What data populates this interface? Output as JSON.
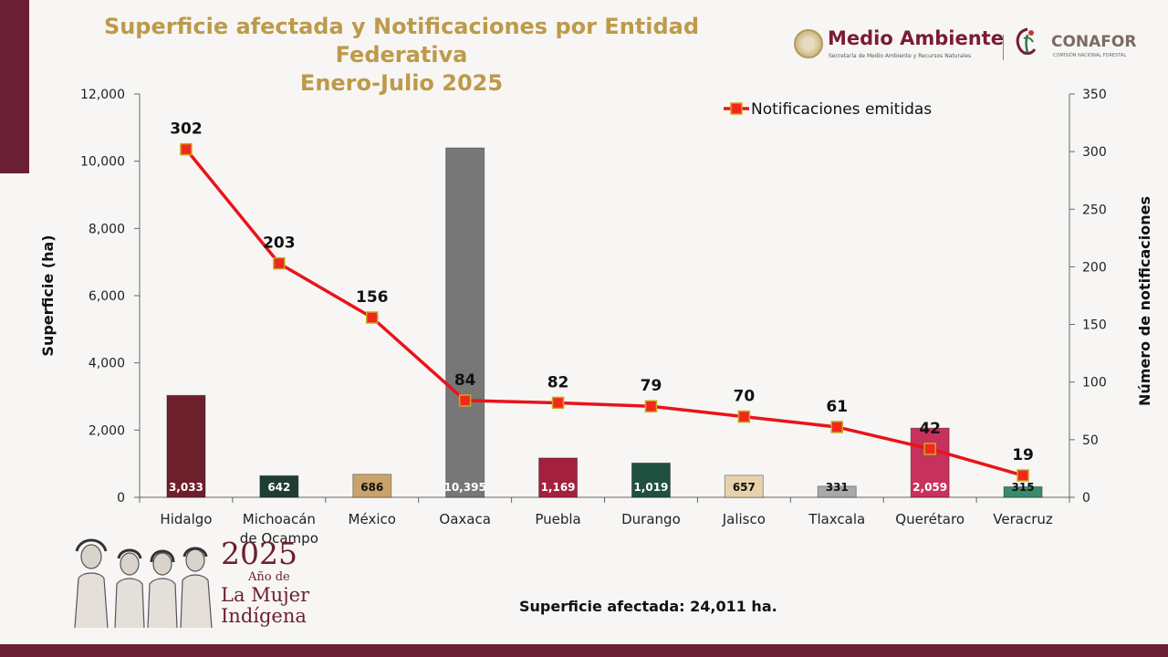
{
  "header": {
    "title_line1": "Superficie afectada y Notificaciones por Entidad Federativa",
    "title_line2": "Enero-Julio 2025",
    "logo_ma_name": "Medio Ambiente",
    "logo_ma_sub": "Secretaría de Medio Ambiente y Recursos Naturales",
    "logo_cf_name": "CONAFOR",
    "logo_cf_sub": "COMISIÓN NACIONAL FORESTAL"
  },
  "footer": {
    "year": "2025",
    "year_sub": "Año de",
    "line1": "La Mujer",
    "line2": "Indígena",
    "total_text": "Superficie afectada: 24,011  ha."
  },
  "colors": {
    "brand": "#6b1f34",
    "gold": "#bd9a4a",
    "line": "#e8141a"
  },
  "chart_data": {
    "type": "bar",
    "categories": [
      "Hidalgo",
      "Michoacán de Ocampo",
      "México",
      "Oaxaca",
      "Puebla",
      "Durango",
      "Jalisco",
      "Tlaxcala",
      "Querétaro",
      "Veracruz"
    ],
    "series": [
      {
        "axis": "left",
        "type": "bar",
        "values": [
          3033,
          642,
          686,
          10395,
          1169,
          1019,
          657,
          331,
          2059,
          315
        ],
        "value_labels": [
          "3,033",
          "642",
          "686",
          "10,395",
          "1,169",
          "1,019",
          "657",
          "331",
          "2,059",
          "315"
        ],
        "colors": [
          "#6e1f2c",
          "#1f3d33",
          "#c9a46a",
          "#777777",
          "#a3213f",
          "#20503f",
          "#e6d2ad",
          "#a8a8a8",
          "#c7325d",
          "#3a8a6c"
        ],
        "label_colors": [
          "#ffffff",
          "#ffffff",
          "#111111",
          "#ffffff",
          "#ffffff",
          "#ffffff",
          "#111111",
          "#111111",
          "#ffffff",
          "#111111"
        ]
      },
      {
        "name": "Notificaciones emitidas",
        "axis": "right",
        "type": "line",
        "values": [
          302,
          203,
          156,
          84,
          82,
          79,
          70,
          61,
          42,
          19
        ]
      }
    ],
    "ylabel": "Superficie (ha)",
    "y2label": "Número de notificaciones",
    "ylim": [
      0,
      12000
    ],
    "y2lim": [
      0,
      350
    ],
    "yticks": [
      "0",
      "2,000",
      "4,000",
      "6,000",
      "8,000",
      "10,000",
      "12,000"
    ],
    "y2ticks": [
      "0",
      "50",
      "100",
      "150",
      "200",
      "250",
      "300",
      "350"
    ],
    "legend_position": "top-right",
    "grid": false
  }
}
